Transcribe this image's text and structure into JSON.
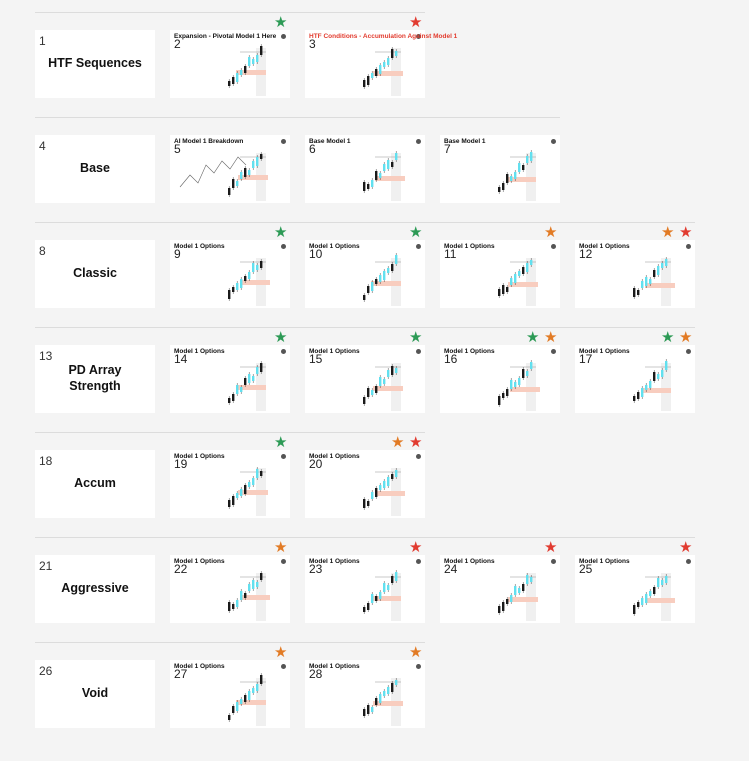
{
  "colors": {
    "green": "#2c9a55",
    "orange": "#e27b25",
    "red": "#e13b30",
    "candle": "#62e0ef",
    "zone": "#f8cdbf"
  },
  "rows": [
    {
      "num": "1",
      "label": "HTF Sequences",
      "cards": [
        {
          "num": "2",
          "title": "Expansion - Pivotal Model 1 Here",
          "red": false,
          "stars": [
            "green"
          ]
        },
        {
          "num": "3",
          "title": "HTF Conditions - Accumulation Against Model 1",
          "red": true,
          "stars": [
            "red"
          ]
        }
      ]
    },
    {
      "num": "4",
      "label": "Base",
      "cards": [
        {
          "num": "5",
          "title": "AI Model 1 Breakdown",
          "red": false,
          "stars": []
        },
        {
          "num": "6",
          "title": "Base Model 1",
          "red": false,
          "stars": []
        },
        {
          "num": "7",
          "title": "Base Model 1",
          "red": false,
          "stars": []
        }
      ]
    },
    {
      "num": "8",
      "label": "Classic",
      "cards": [
        {
          "num": "9",
          "title": "Model 1 Options",
          "red": false,
          "stars": [
            "green"
          ]
        },
        {
          "num": "10",
          "title": "Model 1 Options",
          "red": false,
          "stars": [
            "green"
          ]
        },
        {
          "num": "11",
          "title": "Model 1 Options",
          "red": false,
          "stars": [
            "orange"
          ]
        },
        {
          "num": "12",
          "title": "Model 1 Options",
          "red": false,
          "stars": [
            "orange",
            "red"
          ]
        }
      ]
    },
    {
      "num": "13",
      "label": "PD Array Strength",
      "cards": [
        {
          "num": "14",
          "title": "Model 1 Options",
          "red": false,
          "stars": [
            "green"
          ]
        },
        {
          "num": "15",
          "title": "Model 1 Options",
          "red": false,
          "stars": [
            "green"
          ]
        },
        {
          "num": "16",
          "title": "Model 1 Options",
          "red": false,
          "stars": [
            "green",
            "orange"
          ]
        },
        {
          "num": "17",
          "title": "Model 1 Options",
          "red": false,
          "stars": [
            "green",
            "orange"
          ]
        }
      ]
    },
    {
      "num": "18",
      "label": "Accum",
      "cards": [
        {
          "num": "19",
          "title": "Model 1 Options",
          "red": false,
          "stars": [
            "green"
          ]
        },
        {
          "num": "20",
          "title": "Model 1 Options",
          "red": false,
          "stars": [
            "orange",
            "red"
          ]
        }
      ]
    },
    {
      "num": "21",
      "label": "Aggressive",
      "cards": [
        {
          "num": "22",
          "title": "Model 1 Options",
          "red": false,
          "stars": [
            "orange"
          ]
        },
        {
          "num": "23",
          "title": "Model 1 Options",
          "red": false,
          "stars": [
            "red"
          ]
        },
        {
          "num": "24",
          "title": "Model 1 Options",
          "red": false,
          "stars": [
            "red"
          ]
        },
        {
          "num": "25",
          "title": "Model 1 Options",
          "red": false,
          "stars": [
            "red"
          ]
        }
      ]
    },
    {
      "num": "26",
      "label": "Void",
      "cards": [
        {
          "num": "27",
          "title": "Model 1 Options",
          "red": false,
          "stars": [
            "orange"
          ]
        },
        {
          "num": "28",
          "title": "Model 1 Options",
          "red": false,
          "stars": [
            "orange"
          ]
        }
      ]
    }
  ]
}
